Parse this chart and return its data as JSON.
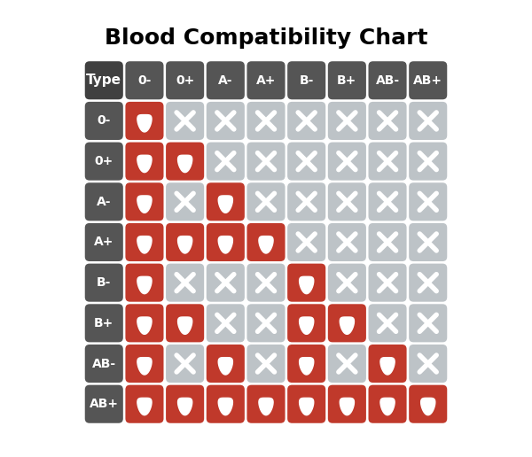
{
  "title": "Blood Compatibility Chart",
  "col_headers": [
    "Type",
    "0-",
    "0+",
    "A-",
    "A+",
    "B-",
    "B+",
    "AB-",
    "AB+"
  ],
  "row_headers": [
    "0-",
    "0+",
    "A-",
    "A+",
    "B-",
    "B+",
    "AB-",
    "AB+"
  ],
  "compatibility": [
    [
      1,
      0,
      0,
      0,
      0,
      0,
      0,
      0
    ],
    [
      1,
      1,
      0,
      0,
      0,
      0,
      0,
      0
    ],
    [
      1,
      0,
      1,
      0,
      0,
      0,
      0,
      0
    ],
    [
      1,
      1,
      1,
      1,
      0,
      0,
      0,
      0
    ],
    [
      1,
      0,
      0,
      0,
      1,
      0,
      0,
      0
    ],
    [
      1,
      1,
      0,
      0,
      1,
      1,
      0,
      0
    ],
    [
      1,
      0,
      1,
      0,
      1,
      0,
      1,
      0
    ],
    [
      1,
      1,
      1,
      1,
      1,
      1,
      1,
      1
    ]
  ],
  "red_color": "#c0392b",
  "gray_light_color": "#bdc3c7",
  "gray_dark_color": "#555555",
  "black_color": "#2c2c2c",
  "white_color": "#ffffff",
  "header_bg": "#404040",
  "row_header_bg": "#606060",
  "title_fontsize": 18,
  "cell_size": 0.56,
  "fig_width": 6.0,
  "fig_height": 5.16
}
